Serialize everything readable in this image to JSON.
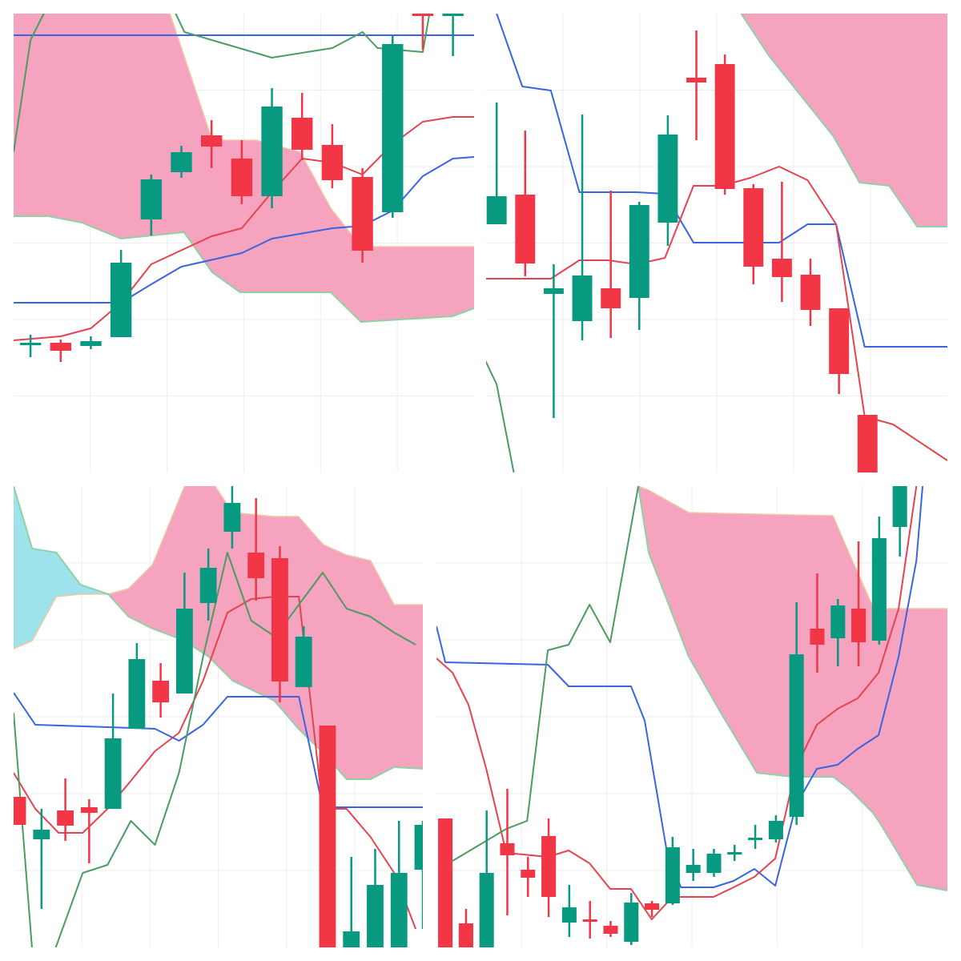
{
  "chart_data": [
    {
      "type": "candlestick",
      "up_color": "#089981",
      "down_color": "#f23645",
      "xlim": [
        0.44,
        15.7
      ],
      "ylim": [
        0,
        573
      ],
      "x": [
        1,
        2,
        3,
        4,
        5,
        6,
        7,
        8,
        9,
        10,
        11,
        12,
        13,
        14,
        15
      ],
      "open": [
        160,
        162,
        158,
        169,
        316,
        375,
        421,
        392,
        345,
        443,
        409,
        369,
        325,
        573,
        573
      ],
      "high": [
        172,
        166,
        170,
        278,
        372,
        408,
        440,
        415,
        480,
        474,
        435,
        380,
        545,
        600,
        600
      ],
      "low": [
        144,
        138,
        154,
        169,
        296,
        368,
        380,
        335,
        330,
        390,
        355,
        262,
        318,
        528,
        520
      ],
      "close": [
        162,
        152,
        164,
        262,
        366,
        400,
        407,
        345,
        457,
        403,
        365,
        277,
        535,
        571,
        573
      ],
      "cloud": {
        "colors": [
          "#f5a3bf",
          "#9ee3ec"
        ],
        "x": [
          0.44,
          1.6,
          2.7,
          4.0,
          5.56,
          6.09,
          7.02,
          7.95,
          8.48,
          9.94,
          10.95,
          11.95,
          14.98,
          15.7
        ],
        "span_a": [
          580,
          580,
          580,
          580,
          580,
          520,
          415,
          415,
          415,
          400,
          330,
          282,
          282,
          282
        ],
        "span_b": [
          320,
          320,
          312,
          292,
          298,
          300,
          250,
          225,
          225,
          225,
          225,
          188,
          195,
          205
        ]
      },
      "series": [
        {
          "color": "#e5434f",
          "x": [
            0.44,
            2,
            3,
            4,
            5,
            7,
            8,
            9,
            10,
            11,
            12,
            13,
            14,
            15,
            15.7
          ],
          "values": [
            165,
            170,
            180,
            212,
            260,
            295,
            305,
            350,
            392,
            387,
            372,
            410,
            438,
            444,
            444
          ]
        },
        {
          "color": "#3a64e0",
          "x": [
            0.44,
            4,
            5,
            6,
            8,
            9,
            11,
            12,
            13,
            14,
            15,
            15.7
          ],
          "values": [
            212,
            212,
            235,
            257,
            274,
            292,
            305,
            308,
            327,
            370,
            392,
            394
          ]
        },
        {
          "color": "#3a64e0",
          "x": [
            0.44,
            15.7
          ],
          "values": [
            546,
            546
          ]
        },
        {
          "color": "#4a9c62",
          "x": [
            0.44,
            1,
            1.6,
            4,
            5.6,
            6.1,
            9,
            11,
            12,
            12.5,
            14,
            14.3
          ],
          "values": [
            400,
            540,
            585,
            null,
            590,
            550,
            518,
            530,
            550,
            530,
            525,
            590
          ]
        }
      ]
    },
    {
      "type": "candlestick",
      "up_color": "#089981",
      "down_color": "#f23645",
      "xlim": [
        0.63,
        16.8
      ],
      "ylim": [
        0,
        573
      ],
      "x": [
        1,
        2,
        3,
        4,
        5,
        6,
        7,
        8,
        9,
        10,
        11,
        12,
        13,
        14
      ],
      "open": [
        310,
        347,
        223,
        189,
        230,
        218,
        312,
        493,
        510,
        355,
        267,
        247,
        205,
        72
      ],
      "high": [
        462,
        427,
        260,
        447,
        352,
        338,
        446,
        552,
        522,
        360,
        363,
        267,
        205,
        72
      ],
      "low": [
        310,
        245,
        68,
        165,
        168,
        178,
        283,
        415,
        347,
        235,
        213,
        183,
        98,
        -2
      ],
      "close": [
        345,
        261,
        230,
        246,
        205,
        334,
        422,
        487,
        354,
        257,
        244,
        203,
        123,
        -2
      ],
      "cloud": {
        "colors": [
          "#f5a3bf",
          "#9ee3ec"
        ],
        "x": [
          9.57,
          10.55,
          12.8,
          13.72,
          14.76,
          15.74,
          16.81
        ],
        "span_a": [
          573,
          600,
          600,
          600,
          600,
          600,
          600
        ],
        "span_b": [
          573,
          520,
          420,
          362,
          358,
          307,
          307
        ]
      },
      "series": [
        {
          "color": "#3a64e0",
          "x": [
            1,
            1.9,
            2.9,
            3.9,
            5.9,
            6.9,
            7.9,
            10.9,
            11.9,
            12.9,
            13.9,
            16.8
          ],
          "values": [
            573,
            482,
            477,
            350,
            350,
            348,
            287,
            287,
            310,
            310,
            157,
            157
          ]
        },
        {
          "color": "#e5434f",
          "x": [
            0.6,
            2.9,
            3.9,
            4.9,
            5.9,
            6.9,
            7.9,
            8.9,
            9.9,
            10.9,
            11.9,
            12.9,
            13.9,
            14.9,
            16.8
          ],
          "values": [
            242,
            242,
            265,
            265,
            260,
            268,
            358,
            358,
            368,
            382,
            365,
            310,
            70,
            60,
            15
          ]
        },
        {
          "color": "#4a9c62",
          "x": [
            0.6,
            1,
            1.6
          ],
          "values": [
            140,
            110,
            0
          ]
        }
      ]
    },
    {
      "type": "candlestick",
      "up_color": "#089981",
      "down_color": "#f23645",
      "xlim": [
        0.83,
        18.0
      ],
      "ylim": [
        0,
        576
      ],
      "x": [
        1,
        2,
        3,
        4,
        5,
        6,
        7,
        8,
        9,
        10,
        11,
        12,
        13,
        14,
        15,
        16,
        17,
        18
      ],
      "open": [
        188,
        135,
        171,
        175,
        173,
        273,
        333,
        317,
        430,
        519,
        493,
        486,
        325,
        277,
        0,
        0,
        0,
        97
      ],
      "high": [
        188,
        173,
        211,
        185,
        317,
        380,
        355,
        468,
        498,
        576,
        561,
        501,
        401,
        277,
        113,
        123,
        158,
        158
      ],
      "low": [
        153,
        48,
        133,
        105,
        173,
        273,
        287,
        317,
        408,
        498,
        433,
        306,
        325,
        0,
        0,
        0,
        0,
        23
      ],
      "close": [
        153,
        147,
        152,
        168,
        261,
        360,
        306,
        423,
        474,
        555,
        461,
        332,
        388,
        0,
        20,
        78,
        93,
        153
      ],
      "cloud": {
        "colors": [
          "#f5a3bf",
          "#9ee3ec"
        ],
        "x": [
          0.83,
          1.61,
          2.62,
          3.63,
          4.8,
          5.65,
          6.66,
          8.0,
          9.01,
          10.02,
          11.77,
          12.78,
          13.82,
          14.8,
          15.81,
          16.79,
          18.04
        ],
        "span_a": [
          373,
          383,
          438,
          441,
          441,
          448,
          478,
          576,
          588,
          543,
          538,
          538,
          503,
          490,
          483,
          428,
          428
        ],
        "span_b": [
          576,
          498,
          493,
          453,
          441,
          413,
          398,
          383,
          363,
          333,
          308,
          273,
          243,
          210,
          210,
          225,
          223
        ]
      },
      "series": [
        {
          "color": "#e5434f",
          "x": [
            0.83,
            1.74,
            2.72,
            3.73,
            4.77,
            5.75,
            6.76,
            7.77,
            8.78,
            9.8,
            10.8,
            11.8,
            12.8,
            13.8,
            14.8,
            15.8,
            16.8,
            17.7
          ],
          "values": [
            218,
            173,
            143,
            143,
            173,
            208,
            245,
            268,
            333,
            418,
            435,
            438,
            438,
            173,
            173,
            138,
            93,
            23
          ]
        },
        {
          "color": "#3a64e0",
          "x": [
            0.83,
            1.74,
            6.76,
            7.77,
            8.78,
            9.8,
            12.8,
            13.8,
            18.0
          ],
          "values": [
            318,
            278,
            273,
            258,
            278,
            313,
            313,
            175,
            175
          ]
        },
        {
          "color": "#4a9c62",
          "x": [
            0.83,
            1.6,
            2.1,
            2.6,
            3.73,
            4.77,
            5.75,
            6.76,
            7.77,
            8.78,
            9.8,
            10.8,
            11.8,
            12.8,
            13.8,
            14.8,
            15.8,
            16.8,
            17.7
          ],
          "values": [
            293,
            0,
            null,
            0,
            93,
            103,
            158,
            128,
            218,
            363,
            493,
            408,
            388,
            428,
            468,
            423,
            413,
            393,
            378
          ]
        }
      ]
    },
    {
      "type": "candlestick",
      "up_color": "#089981",
      "down_color": "#f23645",
      "xlim": [
        0.57,
        25.3
      ],
      "ylim": [
        0,
        576
      ],
      "x": [
        1,
        2,
        3,
        4,
        5,
        6,
        7,
        8,
        9,
        10,
        11,
        12,
        13,
        14,
        15,
        16,
        17,
        18,
        19,
        20,
        21,
        22,
        23
      ],
      "open": [
        161,
        30,
        0,
        130,
        97,
        139,
        31,
        35,
        27,
        7,
        55,
        55,
        93,
        93,
        117,
        135,
        135,
        163,
        398,
        386,
        423,
        383,
        525
      ],
      "high": [
        161,
        48,
        171,
        198,
        113,
        161,
        78,
        58,
        33,
        68,
        58,
        138,
        123,
        123,
        128,
        153,
        165,
        431,
        467,
        435,
        507,
        538,
        576
      ],
      "low": [
        0,
        0,
        0,
        40,
        63,
        38,
        13,
        11,
        13,
        3,
        38,
        53,
        83,
        88,
        108,
        123,
        131,
        153,
        343,
        351,
        351,
        378,
        488
      ],
      "close": [
        0,
        0,
        93,
        115,
        87,
        63,
        50,
        33,
        17,
        56,
        47,
        125,
        103,
        117,
        119,
        137,
        158,
        366,
        378,
        427,
        381,
        511,
        576
      ],
      "cloud": {
        "colors": [
          "#f5a3bf",
          "#9ee3ec"
        ],
        "x": [
          10.34,
          10.84,
          12.78,
          14.33,
          16.08,
          17.82,
          19.76,
          20.53,
          21.7,
          22.09,
          23.83,
          25.3
        ],
        "span_a": [
          576,
          571,
          543,
          542,
          541,
          540,
          539,
          493,
          425,
          423,
          423,
          423
        ],
        "span_b": [
          576,
          493,
          363,
          293,
          218,
          213,
          213,
          198,
          168,
          153,
          78,
          71
        ]
      },
      "series": [
        {
          "color": "#3a64e0",
          "x": [
            0.57,
            1.0,
            5.96,
            6.97,
            9.99,
            10.65,
            11.7,
            12.4,
            13.98,
            14.95,
            15.96,
            16.97,
            17.98,
            18.98,
            19.99,
            20.96,
            21.97,
            22.94,
            23.8,
            24.1
          ],
          "values": [
            401,
            356,
            353,
            326,
            326,
            283,
            123,
            75,
            75,
            83,
            98,
            77,
            178,
            223,
            228,
            248,
            265,
            363,
            483,
            576
          ]
        },
        {
          "color": "#e5434f",
          "x": [
            0.57,
            1.35,
            2.12,
            2.98,
            3.95,
            5.96,
            6.97,
            7.98,
            8.98,
            9.99,
            10.99,
            11.99,
            13.98,
            14.95,
            15.96,
            16.97,
            17.98,
            18.98,
            19.99,
            20.96,
            21.97,
            22.94,
            23.8
          ],
          "values": [
            361,
            343,
            303,
            223,
            118,
            113,
            121,
            105,
            73,
            73,
            35,
            63,
            63,
            75,
            88,
            111,
            225,
            278,
            298,
            311,
            343,
            423,
            576
          ]
        },
        {
          "color": "#4a9c62",
          "x": [
            1.35,
            3.95,
            4.96,
            5.96,
            6.97,
            7.98,
            8.98,
            10.34
          ],
          "values": [
            108,
            148,
            158,
            371,
            378,
            428,
            381,
            576
          ]
        }
      ]
    }
  ]
}
